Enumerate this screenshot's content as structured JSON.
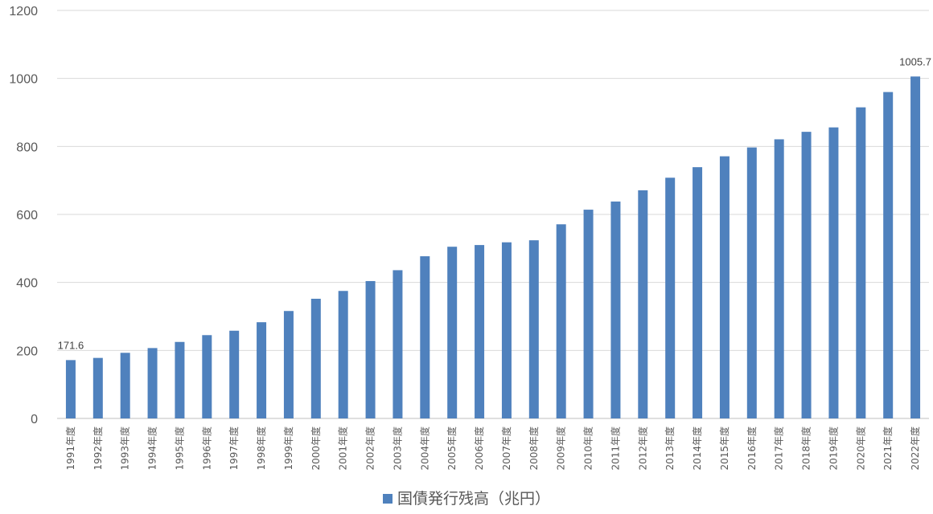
{
  "chart_data": {
    "type": "bar",
    "categories": [
      "1991年度",
      "1992年度",
      "1993年度",
      "1994年度",
      "1995年度",
      "1996年度",
      "1997年度",
      "1998年度",
      "1999年度",
      "2000年度",
      "2001年度",
      "2002年度",
      "2003年度",
      "2004年度",
      "2005年度",
      "2006年度",
      "2007年度",
      "2008年度",
      "2009年度",
      "2010年度",
      "2011年度",
      "2012年度",
      "2013年度",
      "2014年度",
      "2015年度",
      "2016年度",
      "2017年度",
      "2018年度",
      "2019年度",
      "2020年度",
      "2021年度",
      "2022年度"
    ],
    "series": [
      {
        "name": "国債発行残高（兆円）",
        "values": [
          171.6,
          178,
          193,
          207,
          225,
          245,
          258,
          283,
          316,
          352,
          375,
          404,
          436,
          477,
          505,
          510,
          518,
          524,
          571,
          614,
          638,
          671,
          708,
          739,
          771,
          797,
          821,
          843,
          856,
          915,
          960,
          1005.7
        ],
        "color": "#4F81BD"
      }
    ],
    "data_labels": [
      {
        "index": 0,
        "text": "171.6"
      },
      {
        "index": 31,
        "text": "1005.7"
      }
    ],
    "yticks": [
      0,
      200,
      400,
      600,
      800,
      1000,
      1200
    ],
    "ylim": [
      0,
      1200
    ],
    "grid": true,
    "legend_position": "bottom",
    "title": "",
    "xlabel": "",
    "ylabel": ""
  }
}
